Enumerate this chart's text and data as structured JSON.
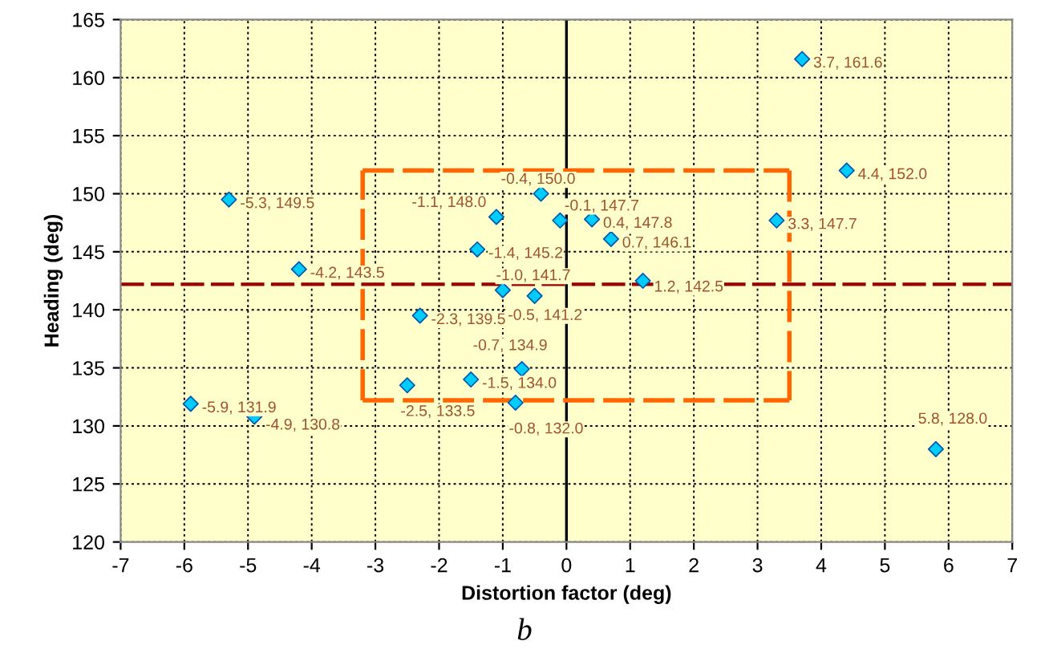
{
  "chart_data": {
    "type": "scatter",
    "xlabel": "Distortion factor (deg)",
    "ylabel": "Heading (deg)",
    "xlim": [
      -7,
      7
    ],
    "ylim": [
      120,
      165
    ],
    "xticks": [
      -7,
      -6,
      -5,
      -4,
      -3,
      -2,
      -1,
      0,
      1,
      2,
      3,
      4,
      5,
      6,
      7
    ],
    "yticks": [
      120,
      125,
      130,
      135,
      140,
      145,
      150,
      155,
      160,
      165
    ],
    "grid": true,
    "marker": "diamond",
    "series": [
      {
        "color": "#00ccff",
        "x": [
          -5.9,
          -5.3,
          -4.9,
          -4.2,
          -2.5,
          -2.3,
          -1.5,
          -1.4,
          -1.1,
          -1.0,
          -0.8,
          -0.7,
          -0.5,
          -0.4,
          -0.1,
          0.4,
          0.7,
          1.2,
          3.3,
          3.7,
          4.4,
          5.8
        ],
        "values": [
          131.9,
          149.5,
          130.8,
          143.5,
          133.5,
          139.5,
          134.0,
          145.2,
          148.0,
          141.7,
          132.0,
          134.9,
          141.2,
          150.0,
          147.7,
          147.8,
          146.1,
          142.5,
          147.7,
          161.6,
          152.0,
          128.0
        ],
        "value_labels": [
          "-5.9, 131.9",
          "-5.3, 149.5",
          "-4.9, 130.8",
          "-4.2, 143.5",
          "-2.5, 133.5",
          "-2.3, 139.5",
          "-1.5, 134.0",
          "-1.4, 145.2",
          "-1.1, 148.0",
          "-1.0, 141.7",
          "-0.8, 132.0",
          "-0.7, 134.9",
          "-0.5, 141.2",
          "-0.4, 150.0",
          "-0.1, 147.7",
          "0.4, 147.8",
          "0.7, 146.1",
          "1.2, 142.5",
          "3.3, 147.7",
          "3.7, 161.6",
          "4.4, 152.0",
          "5.8, 128.0"
        ]
      },
      {
        "type": "line",
        "marker": "none",
        "color": "#ff6600",
        "line_style": "dashed",
        "x": [
          -3.2,
          3.5
        ],
        "values": [
          152,
          152
        ]
      },
      {
        "type": "line",
        "marker": "none",
        "color": "#ff6600",
        "line_style": "dashed",
        "x": [
          3.5,
          3.5
        ],
        "values": [
          152,
          132.2
        ]
      },
      {
        "type": "line",
        "marker": "none",
        "color": "#ff6600",
        "line_style": "dashed",
        "x": [
          -3.2,
          3.5
        ],
        "values": [
          132.2,
          132.2
        ]
      },
      {
        "type": "line",
        "marker": "none",
        "color": "#ff6600",
        "line_style": "dashed",
        "x": [
          -3.2,
          -3.2
        ],
        "values": [
          132.2,
          152
        ]
      }
    ],
    "ref_lines": [
      {
        "axis": "y",
        "value": 142.2,
        "color": "#990000",
        "line_style": "dashed"
      },
      {
        "axis": "x",
        "value": 0,
        "color": "#000000",
        "line_style": "solid"
      }
    ],
    "annotations": [
      "b"
    ]
  }
}
